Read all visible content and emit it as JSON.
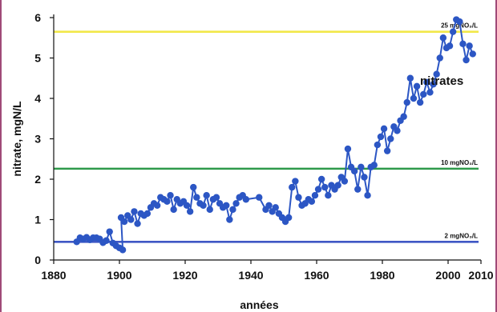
{
  "chart_data": {
    "type": "line",
    "title": "",
    "xlabel": "années",
    "ylabel": "nitrate, mgN/L",
    "xlim": [
      1880,
      2010
    ],
    "ylim": [
      0,
      6
    ],
    "x_ticks": [
      1880,
      1900,
      1920,
      1940,
      1960,
      1980,
      2000,
      2010
    ],
    "y_ticks": [
      0,
      1,
      2,
      3,
      4,
      5,
      6
    ],
    "grid": false,
    "reference_lines": [
      {
        "label": "25 mgNO₃/L",
        "y": 5.65,
        "color": "#f2e84a"
      },
      {
        "label": "10 mgNO₃/L",
        "y": 2.26,
        "color": "#2e9a4a"
      },
      {
        "label": "2 mgNO₃/L",
        "y": 0.45,
        "color": "#3f57c4"
      }
    ],
    "series": [
      {
        "name": "nitrates",
        "color": "#2c56c4",
        "points": [
          [
            1887,
            0.45
          ],
          [
            1888,
            0.55
          ],
          [
            1889,
            0.52
          ],
          [
            1890,
            0.56
          ],
          [
            1891,
            0.5
          ],
          [
            1892,
            0.55
          ],
          [
            1893,
            0.55
          ],
          [
            1894,
            0.52
          ],
          [
            1895,
            0.43
          ],
          [
            1896,
            0.48
          ],
          [
            1897,
            0.7
          ],
          [
            1898,
            0.42
          ],
          [
            1899,
            0.35
          ],
          [
            1900,
            0.3
          ],
          [
            1901,
            0.25
          ],
          [
            1900.5,
            1.05
          ],
          [
            1901.5,
            0.95
          ],
          [
            1902.5,
            1.1
          ],
          [
            1903.5,
            1.0
          ],
          [
            1904.5,
            1.2
          ],
          [
            1905.5,
            0.9
          ],
          [
            1906.5,
            1.15
          ],
          [
            1907.5,
            1.1
          ],
          [
            1908.5,
            1.15
          ],
          [
            1909.5,
            1.3
          ],
          [
            1910.5,
            1.4
          ],
          [
            1911.5,
            1.35
          ],
          [
            1912.5,
            1.55
          ],
          [
            1913.5,
            1.5
          ],
          [
            1914.5,
            1.45
          ],
          [
            1915.5,
            1.6
          ],
          [
            1916.5,
            1.25
          ],
          [
            1917.5,
            1.5
          ],
          [
            1918.5,
            1.4
          ],
          [
            1919.5,
            1.45
          ],
          [
            1920.5,
            1.35
          ],
          [
            1921.5,
            1.2
          ],
          [
            1922.5,
            1.8
          ],
          [
            1923.5,
            1.55
          ],
          [
            1924.5,
            1.4
          ],
          [
            1925.5,
            1.35
          ],
          [
            1926.5,
            1.6
          ],
          [
            1927.5,
            1.25
          ],
          [
            1928.5,
            1.5
          ],
          [
            1929.5,
            1.55
          ],
          [
            1930.5,
            1.4
          ],
          [
            1931.5,
            1.3
          ],
          [
            1932.5,
            1.35
          ],
          [
            1933.5,
            1.0
          ],
          [
            1934.5,
            1.25
          ],
          [
            1935.5,
            1.4
          ],
          [
            1936.5,
            1.55
          ],
          [
            1937.5,
            1.6
          ],
          [
            1938.5,
            1.5
          ],
          [
            1942.5,
            1.55
          ],
          [
            1944.5,
            1.25
          ],
          [
            1945.5,
            1.35
          ],
          [
            1946.5,
            1.2
          ],
          [
            1947.5,
            1.3
          ],
          [
            1948.5,
            1.15
          ],
          [
            1949.5,
            1.05
          ],
          [
            1950.5,
            0.95
          ],
          [
            1951.5,
            1.05
          ],
          [
            1952.5,
            1.8
          ],
          [
            1953.5,
            1.95
          ],
          [
            1954.5,
            1.55
          ],
          [
            1955.5,
            1.35
          ],
          [
            1956.5,
            1.4
          ],
          [
            1957.5,
            1.5
          ],
          [
            1958.5,
            1.45
          ],
          [
            1959.5,
            1.6
          ],
          [
            1960.5,
            1.75
          ],
          [
            1961.5,
            2.0
          ],
          [
            1962.5,
            1.8
          ],
          [
            1963.5,
            1.6
          ],
          [
            1964.5,
            1.85
          ],
          [
            1965.5,
            1.75
          ],
          [
            1966.5,
            1.85
          ],
          [
            1967.5,
            2.05
          ],
          [
            1968.5,
            1.95
          ],
          [
            1969.5,
            2.75
          ],
          [
            1970.5,
            2.3
          ],
          [
            1971.5,
            2.2
          ],
          [
            1972.5,
            1.75
          ],
          [
            1973.5,
            2.3
          ],
          [
            1974.5,
            2.05
          ],
          [
            1975.5,
            1.6
          ],
          [
            1976.5,
            2.3
          ],
          [
            1977.5,
            2.35
          ],
          [
            1978.5,
            2.85
          ],
          [
            1979.5,
            3.05
          ],
          [
            1980.5,
            3.25
          ],
          [
            1981.5,
            2.7
          ],
          [
            1982.5,
            3.0
          ],
          [
            1983.5,
            3.3
          ],
          [
            1984.5,
            3.2
          ],
          [
            1985.5,
            3.45
          ],
          [
            1986.5,
            3.55
          ],
          [
            1987.5,
            3.9
          ],
          [
            1988.5,
            4.5
          ],
          [
            1989.5,
            4.0
          ],
          [
            1990.5,
            4.3
          ],
          [
            1991.5,
            3.9
          ],
          [
            1992.5,
            4.1
          ],
          [
            1993.5,
            4.4
          ],
          [
            1994.5,
            4.15
          ],
          [
            1995.5,
            4.35
          ],
          [
            1996.5,
            4.6
          ],
          [
            1997.5,
            5.0
          ],
          [
            1998.5,
            5.5
          ],
          [
            1999.5,
            5.25
          ],
          [
            2000.5,
            5.3
          ],
          [
            2001.5,
            5.65
          ],
          [
            2002.5,
            5.95
          ],
          [
            2003.5,
            5.9
          ],
          [
            2004.5,
            5.35
          ],
          [
            2005.5,
            4.95
          ],
          [
            2006.5,
            5.3
          ],
          [
            2007.5,
            5.1
          ]
        ]
      }
    ]
  }
}
